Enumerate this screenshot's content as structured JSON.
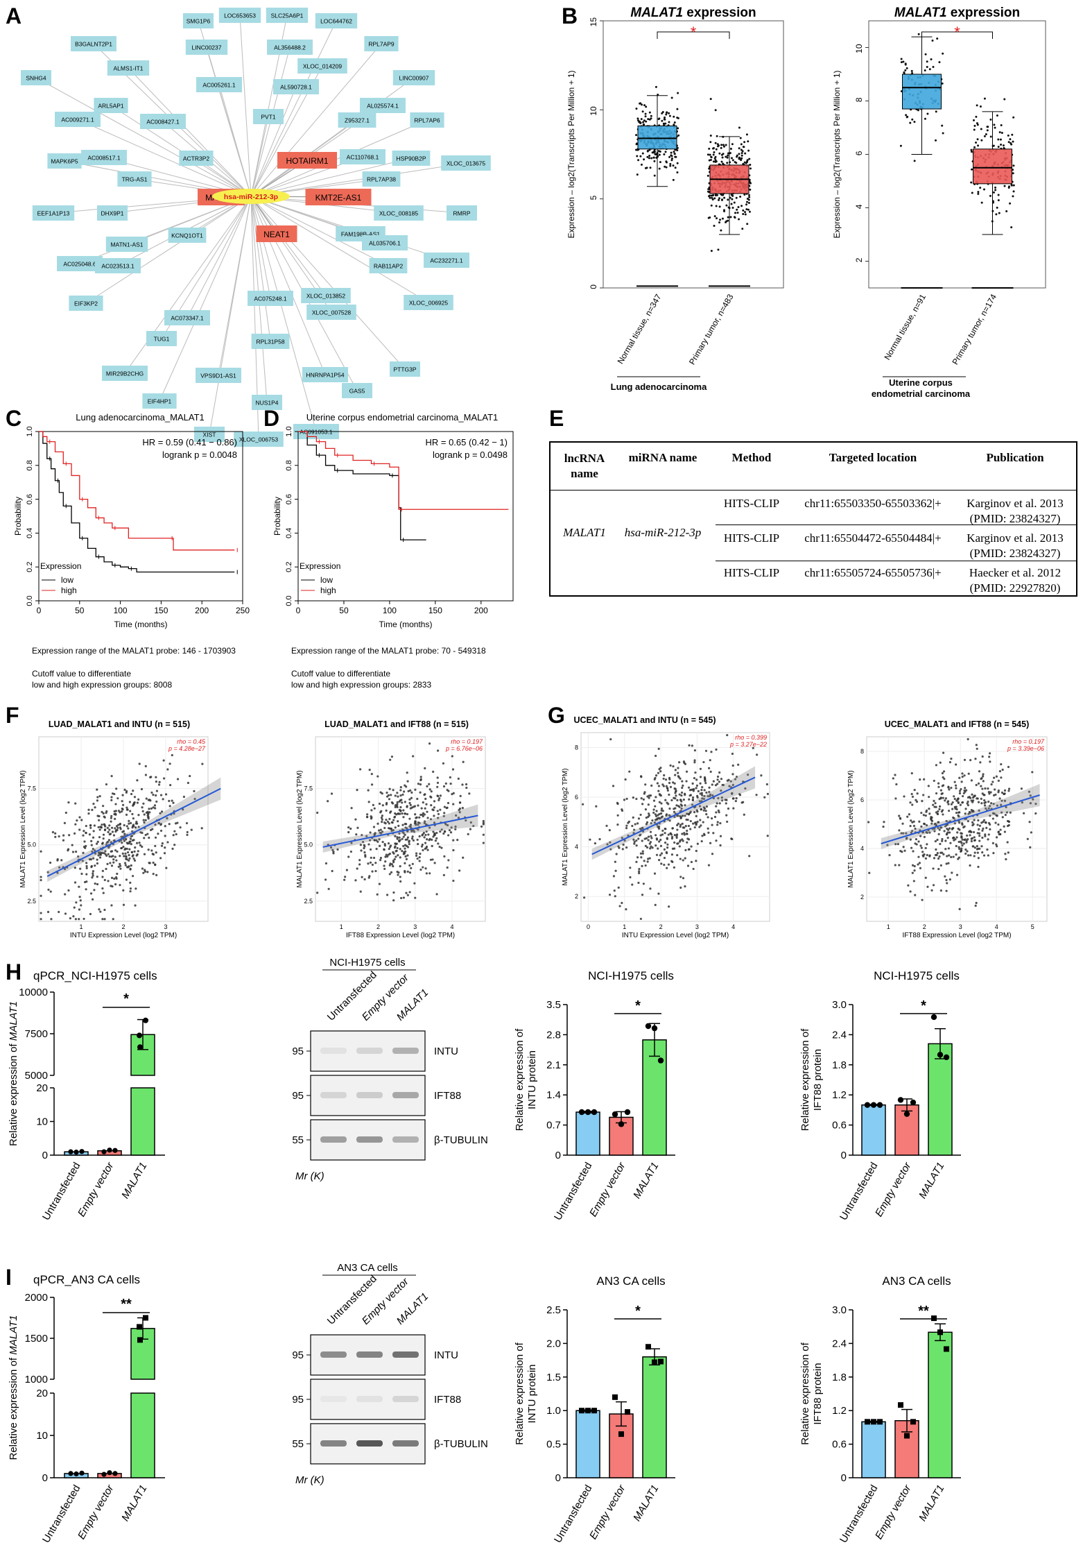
{
  "panels": {
    "A": "A",
    "B": "B",
    "C": "C",
    "D": "D",
    "E": "E",
    "F": "F",
    "G": "G",
    "H": "H",
    "I": "I"
  },
  "colors": {
    "node": "#a6dbe3",
    "hub": "#ed6a57",
    "mirna": "#f7ef4f",
    "mirna_text": "#d81b1b",
    "normal": "#3fa6dd",
    "tumor": "#ea5a57",
    "bar_untransfected": "#87ccf2",
    "bar_empty": "#f47b78",
    "bar_malat1": "#6ce46c",
    "km_low": "#000000",
    "km_high": "#e02020",
    "fit": "#2457d6"
  },
  "network": {
    "center": "hsa-miR-212-3p",
    "hubs": [
      "MALAT1",
      "HOTAIRM1",
      "KMT2E-AS1",
      "NEAT1"
    ],
    "nodes": [
      "SMG1P6",
      "LOC653653",
      "SLC25A6P1",
      "LOC644762",
      "B3GALNT2P1",
      "LINC00237",
      "AL356488.2",
      "RPL7AP9",
      "ALMS1-IT1",
      "XLOC_014209",
      "SNHG4",
      "AC005261.1",
      "AL590728.1",
      "LINC00907",
      "ARL5AP1",
      "AC008427.1",
      "AL025574.1",
      "AC009271.1",
      "PVT1",
      "Z95327.1",
      "RPL7AP6",
      "MAPK6P5",
      "AC008517.1",
      "ACTR3P2",
      "AC110768.1",
      "HSP90B2P",
      "XLOC_013675",
      "TRG-AS1",
      "RPL7AP38",
      "EEF1A1P13",
      "DHX9P1",
      "XLOC_008185",
      "RMRP",
      "KCNQ1OT1",
      "FAM198B-AS1",
      "MATN1-AS1",
      "AL035706.1",
      "AC232271.1",
      "AC025048.6",
      "AC023513.1",
      "RAB11AP2",
      "EIF3KP2",
      "AC075248.1",
      "XLOC_013852",
      "XLOC_006925",
      "AC073347.1",
      "XLOC_007528",
      "TUG1",
      "RPL31P58",
      "MIR29B2CHG",
      "VPS9D1-AS1",
      "HNRNPA1P54",
      "PTTG3P",
      "NUS1P4",
      "EIF4HP1",
      "GAS5",
      "XIST",
      "XLOC_006753",
      "AC091053.1"
    ]
  },
  "panelB": {
    "title_gene": "MALAT1",
    "title_rest": " expression",
    "ylabel": "Expression – log2(Transcripts Per Million + 1)",
    "sig": "*",
    "plots": [
      {
        "groups": [
          "Normal tissue, n=347",
          "Primary tumor, n=483"
        ],
        "disease": "Lung adenocarcinoma",
        "ylim": [
          0,
          15
        ],
        "ticks": [
          0,
          5,
          10,
          15
        ],
        "boxes": [
          {
            "q1": 7.8,
            "median": 8.4,
            "q3": 9.1,
            "low": 5.7,
            "high": 10.8
          },
          {
            "q1": 5.3,
            "median": 6.1,
            "q3": 6.9,
            "low": 3.0,
            "high": 8.5
          }
        ]
      },
      {
        "groups": [
          "Normal tissue, n=91",
          "Primary tumor, n=174"
        ],
        "disease": "Uterine corpus endometrial carcinoma",
        "ylim": [
          1,
          11
        ],
        "ticks": [
          2,
          4,
          6,
          8,
          10
        ],
        "boxes": [
          {
            "q1": 7.7,
            "median": 8.5,
            "q3": 9.0,
            "low": 6.0,
            "high": 10.4
          },
          {
            "q1": 4.9,
            "median": 5.5,
            "q3": 6.2,
            "low": 3.0,
            "high": 7.6
          }
        ]
      }
    ]
  },
  "km": [
    {
      "title": "Lung adenocarcinoma_MALAT1",
      "hr": "HR = 0.59 (0.41 − 0.86)",
      "logrank": "logrank p = 0.0048",
      "xlabel": "Time (months)",
      "ylabel": "Probability",
      "legend_title": "Expression",
      "low": "low",
      "high": "high",
      "xticks": [
        0,
        50,
        100,
        150,
        200,
        250
      ],
      "xmax": 250,
      "low_curve": [
        [
          0,
          1.0
        ],
        [
          5,
          0.93
        ],
        [
          10,
          0.84
        ],
        [
          15,
          0.78
        ],
        [
          20,
          0.71
        ],
        [
          25,
          0.64
        ],
        [
          30,
          0.56
        ],
        [
          40,
          0.46
        ],
        [
          50,
          0.37
        ],
        [
          60,
          0.31
        ],
        [
          70,
          0.26
        ],
        [
          80,
          0.23
        ],
        [
          90,
          0.21
        ],
        [
          100,
          0.2
        ],
        [
          110,
          0.19
        ],
        [
          120,
          0.17
        ],
        [
          240,
          0.17
        ]
      ],
      "high_curve": [
        [
          0,
          1.0
        ],
        [
          5,
          0.97
        ],
        [
          10,
          0.94
        ],
        [
          20,
          0.88
        ],
        [
          30,
          0.81
        ],
        [
          40,
          0.74
        ],
        [
          50,
          0.6
        ],
        [
          60,
          0.55
        ],
        [
          70,
          0.49
        ],
        [
          80,
          0.46
        ],
        [
          90,
          0.43
        ],
        [
          110,
          0.37
        ],
        [
          160,
          0.37
        ],
        [
          165,
          0.3
        ],
        [
          240,
          0.3
        ]
      ],
      "range": "Expression range of the MALAT1 probe: 146 - 1703903",
      "cutoff1": "Cutoff value to differentiate",
      "cutoff2": "low and high expression groups: 8008"
    },
    {
      "title": "Uterine corpus endometrial carcinoma_MALAT1",
      "hr": "HR = 0.65 (0.42 − 1)",
      "logrank": "logrank p = 0.0498",
      "xlabel": "Time (months)",
      "ylabel": "Probability",
      "legend_title": "Expression",
      "low": "low",
      "high": "high",
      "xticks": [
        0,
        50,
        100,
        150,
        200
      ],
      "xmax": 235,
      "low_curve": [
        [
          0,
          1.0
        ],
        [
          10,
          0.92
        ],
        [
          20,
          0.86
        ],
        [
          30,
          0.8
        ],
        [
          40,
          0.77
        ],
        [
          60,
          0.75
        ],
        [
          100,
          0.74
        ],
        [
          110,
          0.55
        ],
        [
          112,
          0.36
        ],
        [
          140,
          0.36
        ]
      ],
      "high_curve": [
        [
          0,
          1.0
        ],
        [
          10,
          0.97
        ],
        [
          20,
          0.94
        ],
        [
          30,
          0.9
        ],
        [
          40,
          0.86
        ],
        [
          60,
          0.83
        ],
        [
          80,
          0.81
        ],
        [
          100,
          0.79
        ],
        [
          110,
          0.54
        ],
        [
          230,
          0.54
        ]
      ],
      "range": "Expression range of the MALAT1 probe: 70 - 549318",
      "cutoff1": "Cutoff value to differentiate",
      "cutoff2": "low and high expression groups: 2833"
    }
  ],
  "table": {
    "headers": [
      "lncRNA name",
      "miRNA name",
      "Method",
      "Targeted location",
      "Publication"
    ],
    "lncrna": "MALAT1",
    "mirna": "hsa-miR-212-3p",
    "rows": [
      {
        "method": "HITS-CLIP",
        "location": "chr11:65503350-65503362|+",
        "pub1": "Karginov et al. 2013",
        "pub2": "(PMID: 23824327)"
      },
      {
        "method": "HITS-CLIP",
        "location": "chr11:65504472-65504484|+",
        "pub1": "Karginov et al. 2013",
        "pub2": "(PMID: 23824327)"
      },
      {
        "method": "HITS-CLIP",
        "location": "chr11:65505724-65505736|+",
        "pub1": "Haecker et al. 2012",
        "pub2": "(PMID: 22927820)"
      }
    ]
  },
  "scatter": [
    {
      "title": "LUAD_MALAT1 and INTU (n = 515)",
      "rho": "rho = 0.45",
      "p": "p = 4.28e−27",
      "xlabel": "INTU Expression Level (log2 TPM)",
      "ylabel": "MALAT1 Expression Level (log2 TPM)",
      "xlim": [
        0,
        4
      ],
      "ylim": [
        1.6,
        9.8
      ],
      "xticks": [
        1,
        2,
        3
      ],
      "yticks": [
        2.5,
        5.0,
        7.5
      ],
      "fit": [
        0.2,
        4.3,
        3.6,
        7.5
      ],
      "center": [
        1.9,
        5.6
      ],
      "spread": [
        0.75,
        1.25
      ],
      "n": 515
    },
    {
      "title": "LUAD_MALAT1 and IFT88 (n = 515)",
      "rho": "rho = 0.197",
      "p": "p = 6.76e−06",
      "xlabel": "IFT88 Expression Level (log2 TPM)",
      "ylabel": "MALAT1 Expression Level (log2 TPM)",
      "xlim": [
        0.3,
        4.9
      ],
      "ylim": [
        1.6,
        9.8
      ],
      "xticks": [
        1,
        2,
        3,
        4
      ],
      "yticks": [
        2.5,
        5.0,
        7.5
      ],
      "fit": [
        0.5,
        4.7,
        4.9,
        6.3
      ],
      "center": [
        2.7,
        5.6
      ],
      "spread": [
        0.8,
        1.25
      ],
      "n": 515
    },
    {
      "title": "UCEC_MALAT1 and INTU (n = 545)",
      "rho": "rho = 0.399",
      "p": "p = 3.27e−22",
      "xlabel": "INTU Expression Level (log2 TPM)",
      "ylabel": "MALAT1 Expression Level (log2 TPM)",
      "xlim": [
        -0.2,
        5.0
      ],
      "ylim": [
        1.0,
        8.6
      ],
      "xticks": [
        0,
        1,
        2,
        3,
        4
      ],
      "yticks": [
        2,
        4,
        6,
        8
      ],
      "fit": [
        0.1,
        4.6,
        3.7,
        6.8
      ],
      "center": [
        2.4,
        5.0
      ],
      "spread": [
        0.9,
        1.2
      ],
      "n": 545
    },
    {
      "title": "UCEC_MALAT1 and IFT88 (n = 545)",
      "rho": "rho = 0.197",
      "p": "p = 3.39e−06",
      "xlabel": "IFT88 Expression Level (log2 TPM)",
      "ylabel": "MALAT1 Expression Level (log2 TPM)",
      "xlim": [
        0.4,
        5.4
      ],
      "ylim": [
        1.0,
        8.6
      ],
      "xticks": [
        1,
        2,
        3,
        4,
        5
      ],
      "yticks": [
        2,
        4,
        6,
        8
      ],
      "fit": [
        0.8,
        5.2,
        4.2,
        6.2
      ],
      "center": [
        2.9,
        5.0
      ],
      "spread": [
        0.85,
        1.2
      ],
      "n": 545
    }
  ],
  "qpcr": [
    {
      "title": "qPCR_NCI-H1975 cells",
      "ylabel_pre": "Relative expression of ",
      "ylabel_gene": "MALAT1",
      "sig": "*",
      "upper_ticks": [
        "5000",
        "7500",
        "10000"
      ],
      "lower_ticks": [
        "0",
        "10",
        "20"
      ],
      "means": [
        1.0,
        1.3,
        7450
      ],
      "err": [
        0.2,
        0.3,
        900
      ],
      "points": [
        [
          1.0,
          0.9,
          1.1
        ],
        [
          1.0,
          1.5,
          1.4
        ],
        [
          8300,
          7400,
          6700
        ]
      ],
      "upper_range": [
        5000,
        10000
      ]
    },
    {
      "title": "qPCR_AN3 CA cells",
      "ylabel_pre": "Relative expression of ",
      "ylabel_gene": "MALAT1",
      "sig": "**",
      "upper_ticks": [
        "1000",
        "1500",
        "2000"
      ],
      "lower_ticks": [
        "0",
        "10",
        "20"
      ],
      "means": [
        1.0,
        1.0,
        1620
      ],
      "err": [
        0.2,
        0.2,
        130
      ],
      "points": [
        [
          1.0,
          0.9,
          1.1
        ],
        [
          0.8,
          1.2,
          1.0
        ],
        [
          1750,
          1640,
          1480
        ]
      ],
      "upper_range": [
        1000,
        2000
      ]
    }
  ],
  "categories": [
    "Untransfected",
    "Empty vector",
    "MALAT1"
  ],
  "blots": [
    {
      "title": "NCI-H1975 cells",
      "mw": [
        "95",
        "95",
        "55"
      ],
      "bands": [
        "INTU",
        "IFT88",
        "β-TUBULIN"
      ],
      "mr": "Mr (K)",
      "intensity": [
        [
          0.08,
          0.15,
          0.35
        ],
        [
          0.15,
          0.2,
          0.4
        ],
        [
          0.45,
          0.5,
          0.35
        ]
      ]
    },
    {
      "title": "AN3 CA cells",
      "mw": [
        "95",
        "95",
        "55"
      ],
      "bands": [
        "INTU",
        "IFT88",
        "β-TUBULIN"
      ],
      "mr": "Mr (K)",
      "intensity": [
        [
          0.55,
          0.6,
          0.7
        ],
        [
          0.05,
          0.08,
          0.15
        ],
        [
          0.6,
          0.85,
          0.65
        ]
      ]
    }
  ],
  "protein": [
    {
      "title": "NCI-H1975 cells",
      "ylabel1": "Relative expression of",
      "ylabel2": "INTU protein",
      "sig": "*",
      "ylim": [
        0,
        3.5
      ],
      "ticks": [
        "0",
        "0.7",
        "1.4",
        "2.1",
        "2.8",
        "3.5"
      ],
      "tickvals": [
        0,
        0.7,
        1.4,
        2.1,
        2.8,
        3.5
      ],
      "means": [
        1.0,
        0.88,
        2.68
      ],
      "err": [
        0.02,
        0.13,
        0.38
      ],
      "points": [
        [
          1.0,
          1.0,
          1.0
        ],
        [
          0.95,
          0.72,
          1.0
        ],
        [
          3.0,
          2.95,
          2.2
        ]
      ],
      "shape": "circle"
    },
    {
      "title": "NCI-H1975 cells",
      "ylabel1": "Relative expression of",
      "ylabel2": "IFT88 protein",
      "sig": "*",
      "ylim": [
        0,
        3.0
      ],
      "ticks": [
        "0",
        "0.6",
        "1.2",
        "1.8",
        "2.4",
        "3.0"
      ],
      "tickvals": [
        0,
        0.6,
        1.2,
        1.8,
        2.4,
        3.0
      ],
      "means": [
        1.0,
        1.0,
        2.22
      ],
      "err": [
        0.01,
        0.12,
        0.3
      ],
      "points": [
        [
          1.0,
          1.0,
          1.0
        ],
        [
          1.1,
          0.82,
          1.05
        ],
        [
          2.75,
          2.0,
          1.95
        ]
      ],
      "shape": "circle"
    },
    {
      "title": "AN3 CA cells",
      "ylabel1": "Relative expression of",
      "ylabel2": "INTU protein",
      "sig": "*",
      "ylim": [
        0,
        2.5
      ],
      "ticks": [
        "0",
        "0.5",
        "1.0",
        "1.5",
        "2.0",
        "2.5"
      ],
      "tickvals": [
        0,
        0.5,
        1.0,
        1.5,
        2.0,
        2.5
      ],
      "means": [
        1.0,
        0.95,
        1.8
      ],
      "err": [
        0.01,
        0.18,
        0.12
      ],
      "points": [
        [
          1.0,
          1.0,
          1.0
        ],
        [
          1.2,
          0.65,
          0.98
        ],
        [
          1.95,
          1.72,
          1.73
        ]
      ],
      "shape": "square"
    },
    {
      "title": "AN3 CA cells",
      "ylabel1": "Relative expression of",
      "ylabel2": "IFT88 protein",
      "sig": "**",
      "ylim": [
        0,
        3.0
      ],
      "ticks": [
        "0",
        "0.6",
        "1.2",
        "1.8",
        "2.4",
        "3.0"
      ],
      "tickvals": [
        0,
        0.6,
        1.2,
        1.8,
        2.4,
        3.0
      ],
      "means": [
        1.0,
        1.02,
        2.6
      ],
      "err": [
        0.01,
        0.2,
        0.15
      ],
      "points": [
        [
          1.0,
          1.0,
          1.0
        ],
        [
          1.3,
          0.75,
          1.0
        ],
        [
          2.85,
          2.6,
          2.3
        ]
      ],
      "shape": "square"
    }
  ],
  "chart_data": [
    {
      "type": "box",
      "title": "MALAT1 expression",
      "categories": [
        "Normal tissue, n=347",
        "Primary tumor, n=483"
      ],
      "group": "Lung adenocarcinoma",
      "medians": [
        8.4,
        6.1
      ]
    },
    {
      "type": "box",
      "title": "MALAT1 expression",
      "categories": [
        "Normal tissue, n=91",
        "Primary tumor, n=174"
      ],
      "group": "Uterine corpus endometrial carcinoma",
      "medians": [
        8.5,
        5.5
      ]
    },
    {
      "type": "line",
      "title": "Lung adenocarcinoma_MALAT1",
      "xlabel": "Time (months)",
      "ylabel": "Probability",
      "series": [
        {
          "name": "low"
        },
        {
          "name": "high"
        }
      ]
    },
    {
      "type": "line",
      "title": "Uterine corpus endometrial carcinoma_MALAT1",
      "xlabel": "Time (months)",
      "ylabel": "Probability",
      "series": [
        {
          "name": "low"
        },
        {
          "name": "high"
        }
      ]
    },
    {
      "type": "scatter",
      "title": "LUAD_MALAT1 and INTU (n = 515)"
    },
    {
      "type": "scatter",
      "title": "LUAD_MALAT1 and IFT88 (n = 515)"
    },
    {
      "type": "scatter",
      "title": "UCEC_MALAT1 and INTU (n = 545)"
    },
    {
      "type": "scatter",
      "title": "UCEC_MALAT1 and IFT88 (n = 545)"
    },
    {
      "type": "bar",
      "title": "qPCR_NCI-H1975 cells",
      "categories": [
        "Untransfected",
        "Empty vector",
        "MALAT1"
      ],
      "values": [
        1.0,
        1.3,
        7450
      ]
    },
    {
      "type": "bar",
      "title": "NCI-H1975 cells",
      "categories": [
        "Untransfected",
        "Empty vector",
        "MALAT1"
      ],
      "values": [
        1.0,
        0.88,
        2.68
      ]
    },
    {
      "type": "bar",
      "title": "NCI-H1975 cells",
      "categories": [
        "Untransfected",
        "Empty vector",
        "MALAT1"
      ],
      "values": [
        1.0,
        1.0,
        2.22
      ]
    },
    {
      "type": "bar",
      "title": "qPCR_AN3 CA cells",
      "categories": [
        "Untransfected",
        "Empty vector",
        "MALAT1"
      ],
      "values": [
        1.0,
        1.0,
        1620
      ]
    },
    {
      "type": "bar",
      "title": "AN3 CA cells",
      "categories": [
        "Untransfected",
        "Empty vector",
        "MALAT1"
      ],
      "values": [
        1.0,
        0.95,
        1.8
      ]
    },
    {
      "type": "bar",
      "title": "AN3 CA cells",
      "categories": [
        "Untransfected",
        "Empty vector",
        "MALAT1"
      ],
      "values": [
        1.0,
        1.02,
        2.6
      ]
    }
  ]
}
